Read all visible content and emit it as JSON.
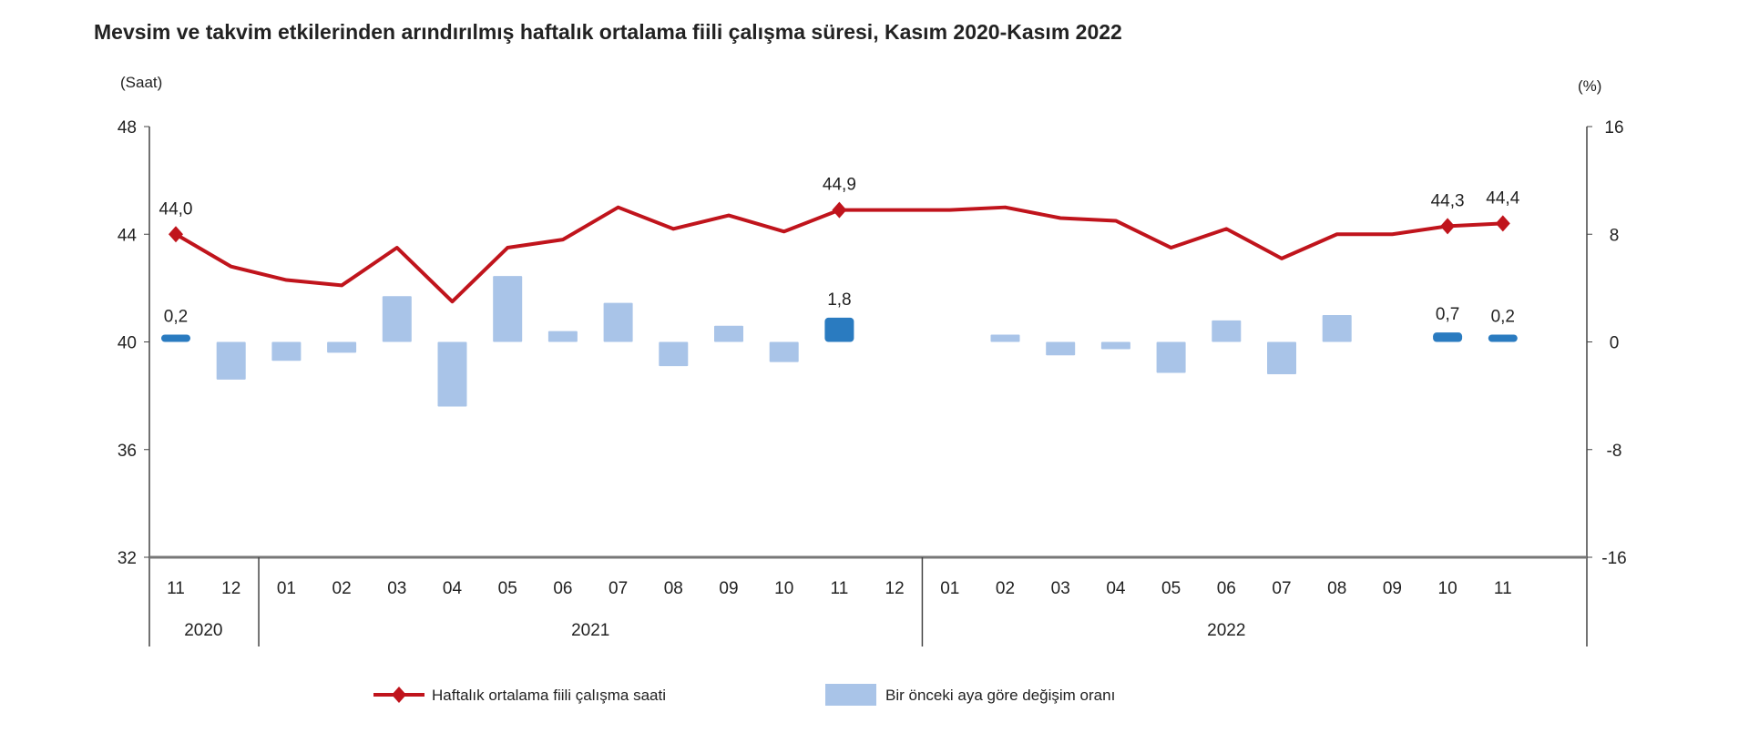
{
  "chart_data": {
    "type": "bar+line",
    "title": "Mevsim ve takvim etkilerinden arındırılmış haftalık ortalama fiili çalışma süresi, Kasım 2020-Kasım 2022",
    "ylabel_left": "(Saat)",
    "ylabel_right": "(%)",
    "ylim_left": [
      32,
      48
    ],
    "yticks_left": [
      "48",
      "44",
      "40",
      "36",
      "32"
    ],
    "ylim_right": [
      -16,
      16
    ],
    "yticks_right": [
      "16",
      "8",
      "0",
      "-8",
      "-16"
    ],
    "categories": [
      "11",
      "12",
      "01",
      "02",
      "03",
      "04",
      "05",
      "06",
      "07",
      "08",
      "09",
      "10",
      "11",
      "12",
      "01",
      "02",
      "03",
      "04",
      "05",
      "06",
      "07",
      "08",
      "09",
      "10",
      "11"
    ],
    "year_groups": [
      {
        "label": "2020",
        "count": 2
      },
      {
        "label": "2021",
        "count": 12
      },
      {
        "label": "2022",
        "count": 11
      }
    ],
    "grid": false,
    "legend_position": "bottom",
    "series": [
      {
        "name": "Haftalık ortalama fiili çalışma saati",
        "type": "line",
        "axis": "left",
        "color": "#c0141c",
        "values": [
          44.0,
          42.8,
          42.3,
          42.1,
          43.5,
          41.5,
          43.5,
          43.8,
          45.0,
          44.2,
          44.7,
          44.1,
          44.9,
          44.9,
          44.9,
          45.0,
          44.6,
          44.5,
          43.5,
          44.2,
          43.1,
          44.0,
          44.0,
          44.3,
          44.4
        ],
        "labels": {
          "0": "44,0",
          "12": "44,9",
          "23": "44,3",
          "24": "44,4"
        }
      },
      {
        "name": "Bir önceki aya göre değişim oranı",
        "type": "bar",
        "axis": "right",
        "color": "#a9c4e8",
        "highlight_color": "#2a7bc0",
        "values": [
          0.2,
          -2.8,
          -1.4,
          -0.8,
          3.4,
          -4.8,
          4.9,
          0.8,
          2.9,
          -1.8,
          1.2,
          -1.5,
          1.8,
          null,
          null,
          0.2,
          -1.0,
          -0.4,
          -2.3,
          1.6,
          -2.4,
          2.0,
          null,
          0.7,
          0.2
        ],
        "labels": {
          "0": "0,2",
          "12": "1,8",
          "23": "0,7",
          "24": "0,2"
        }
      }
    ]
  }
}
